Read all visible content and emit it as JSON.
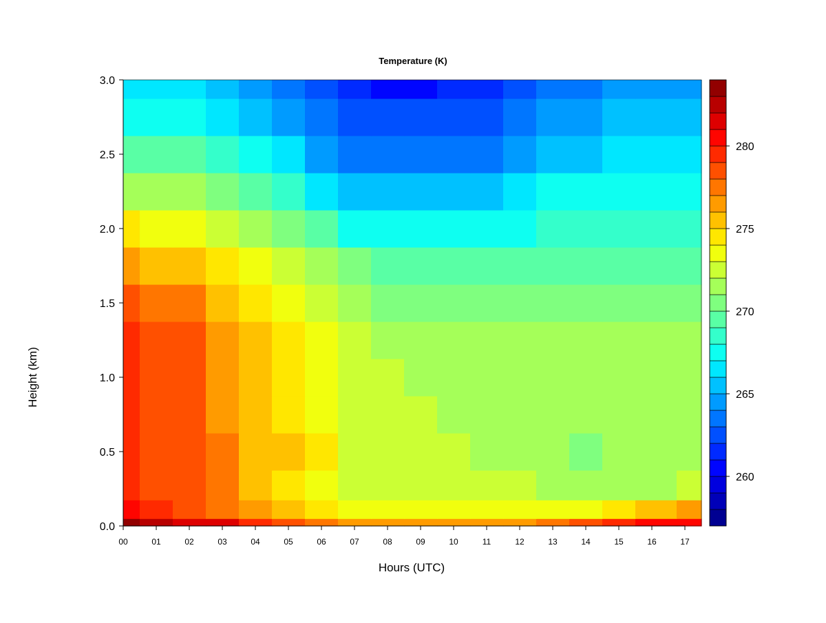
{
  "chart_data": {
    "type": "heatmap",
    "title": "Temperature (K)",
    "xlabel": "Hours (UTC)",
    "ylabel": "Height (km)",
    "x_ticks": [
      "00",
      "01",
      "02",
      "03",
      "04",
      "05",
      "06",
      "07",
      "08",
      "09",
      "10",
      "11",
      "12",
      "13",
      "14",
      "15",
      "16",
      "17"
    ],
    "x_range": [
      0,
      17.5
    ],
    "y_ticks": [
      "0.0",
      "0.5",
      "1.0",
      "1.5",
      "2.0",
      "2.5",
      "3.0"
    ],
    "y_range": [
      0,
      3.0
    ],
    "colorbar": {
      "ticks": [
        "260",
        "265",
        "270",
        "275",
        "280"
      ],
      "range": [
        257,
        284
      ],
      "levels": 27,
      "palette": [
        "#00007f",
        "#0000ff",
        "#007fff",
        "#00ffff",
        "#7fff7f",
        "#ffff00",
        "#ff7f00",
        "#ff0000",
        "#7f0000"
      ]
    },
    "hours": [
      0,
      1,
      2,
      3,
      4,
      5,
      6,
      7,
      8,
      9,
      10,
      11,
      12,
      13,
      14,
      15,
      16,
      17.5
    ],
    "heights": [
      0.0,
      0.1,
      0.25,
      0.5,
      0.75,
      1.0,
      1.25,
      1.5,
      1.75,
      2.0,
      2.25,
      2.5,
      2.75,
      3.0
    ],
    "values": [
      [
        283,
        282,
        281,
        281,
        279,
        278,
        277,
        276,
        276,
        276,
        276,
        276,
        276,
        277,
        278,
        279,
        280,
        280
      ],
      [
        280,
        279,
        278,
        277,
        276,
        275,
        274,
        273,
        273,
        273,
        273,
        273,
        273,
        273,
        273,
        274,
        275,
        276
      ],
      [
        279,
        278,
        278,
        277,
        275,
        274,
        273,
        272,
        272,
        272,
        272,
        272,
        272,
        271,
        271,
        271,
        271,
        272
      ],
      [
        279,
        278,
        278,
        277,
        275,
        275,
        274,
        272,
        272,
        272,
        272,
        271,
        271,
        271,
        270,
        271,
        271,
        271
      ],
      [
        279,
        278,
        278,
        276,
        275,
        274,
        273,
        272,
        272,
        272,
        271,
        271,
        271,
        271,
        271,
        271,
        271,
        271
      ],
      [
        279,
        278,
        278,
        276,
        275,
        274,
        273,
        272,
        272,
        271,
        271,
        271,
        271,
        271,
        271,
        271,
        271,
        271
      ],
      [
        279,
        278,
        278,
        276,
        275,
        274,
        273,
        272,
        271,
        271,
        271,
        271,
        271,
        271,
        271,
        271,
        271,
        271
      ],
      [
        278,
        277,
        277,
        275,
        274,
        273,
        272,
        271,
        270,
        270,
        270,
        270,
        270,
        270,
        270,
        270,
        270,
        270
      ],
      [
        276,
        275,
        275,
        274,
        273,
        272,
        271,
        270,
        269,
        269,
        269,
        269,
        269,
        269,
        269,
        269,
        269,
        269
      ],
      [
        274,
        273,
        273,
        272,
        271,
        270,
        269,
        267,
        267,
        267,
        267,
        267,
        267,
        268,
        268,
        268,
        268,
        268
      ],
      [
        271,
        271,
        271,
        270,
        269,
        268,
        266,
        265,
        265,
        265,
        265,
        265,
        266,
        267,
        267,
        267,
        267,
        267
      ],
      [
        269,
        269,
        269,
        268,
        267,
        266,
        264,
        263,
        263,
        263,
        263,
        263,
        264,
        265,
        265,
        266,
        266,
        266
      ],
      [
        267,
        267,
        267,
        266,
        265,
        264,
        263,
        262,
        262,
        262,
        262,
        262,
        263,
        264,
        264,
        265,
        265,
        265
      ],
      [
        266,
        266,
        266,
        265,
        264,
        263,
        262,
        261,
        260,
        260,
        261,
        261,
        262,
        263,
        263,
        264,
        264,
        264
      ]
    ]
  }
}
